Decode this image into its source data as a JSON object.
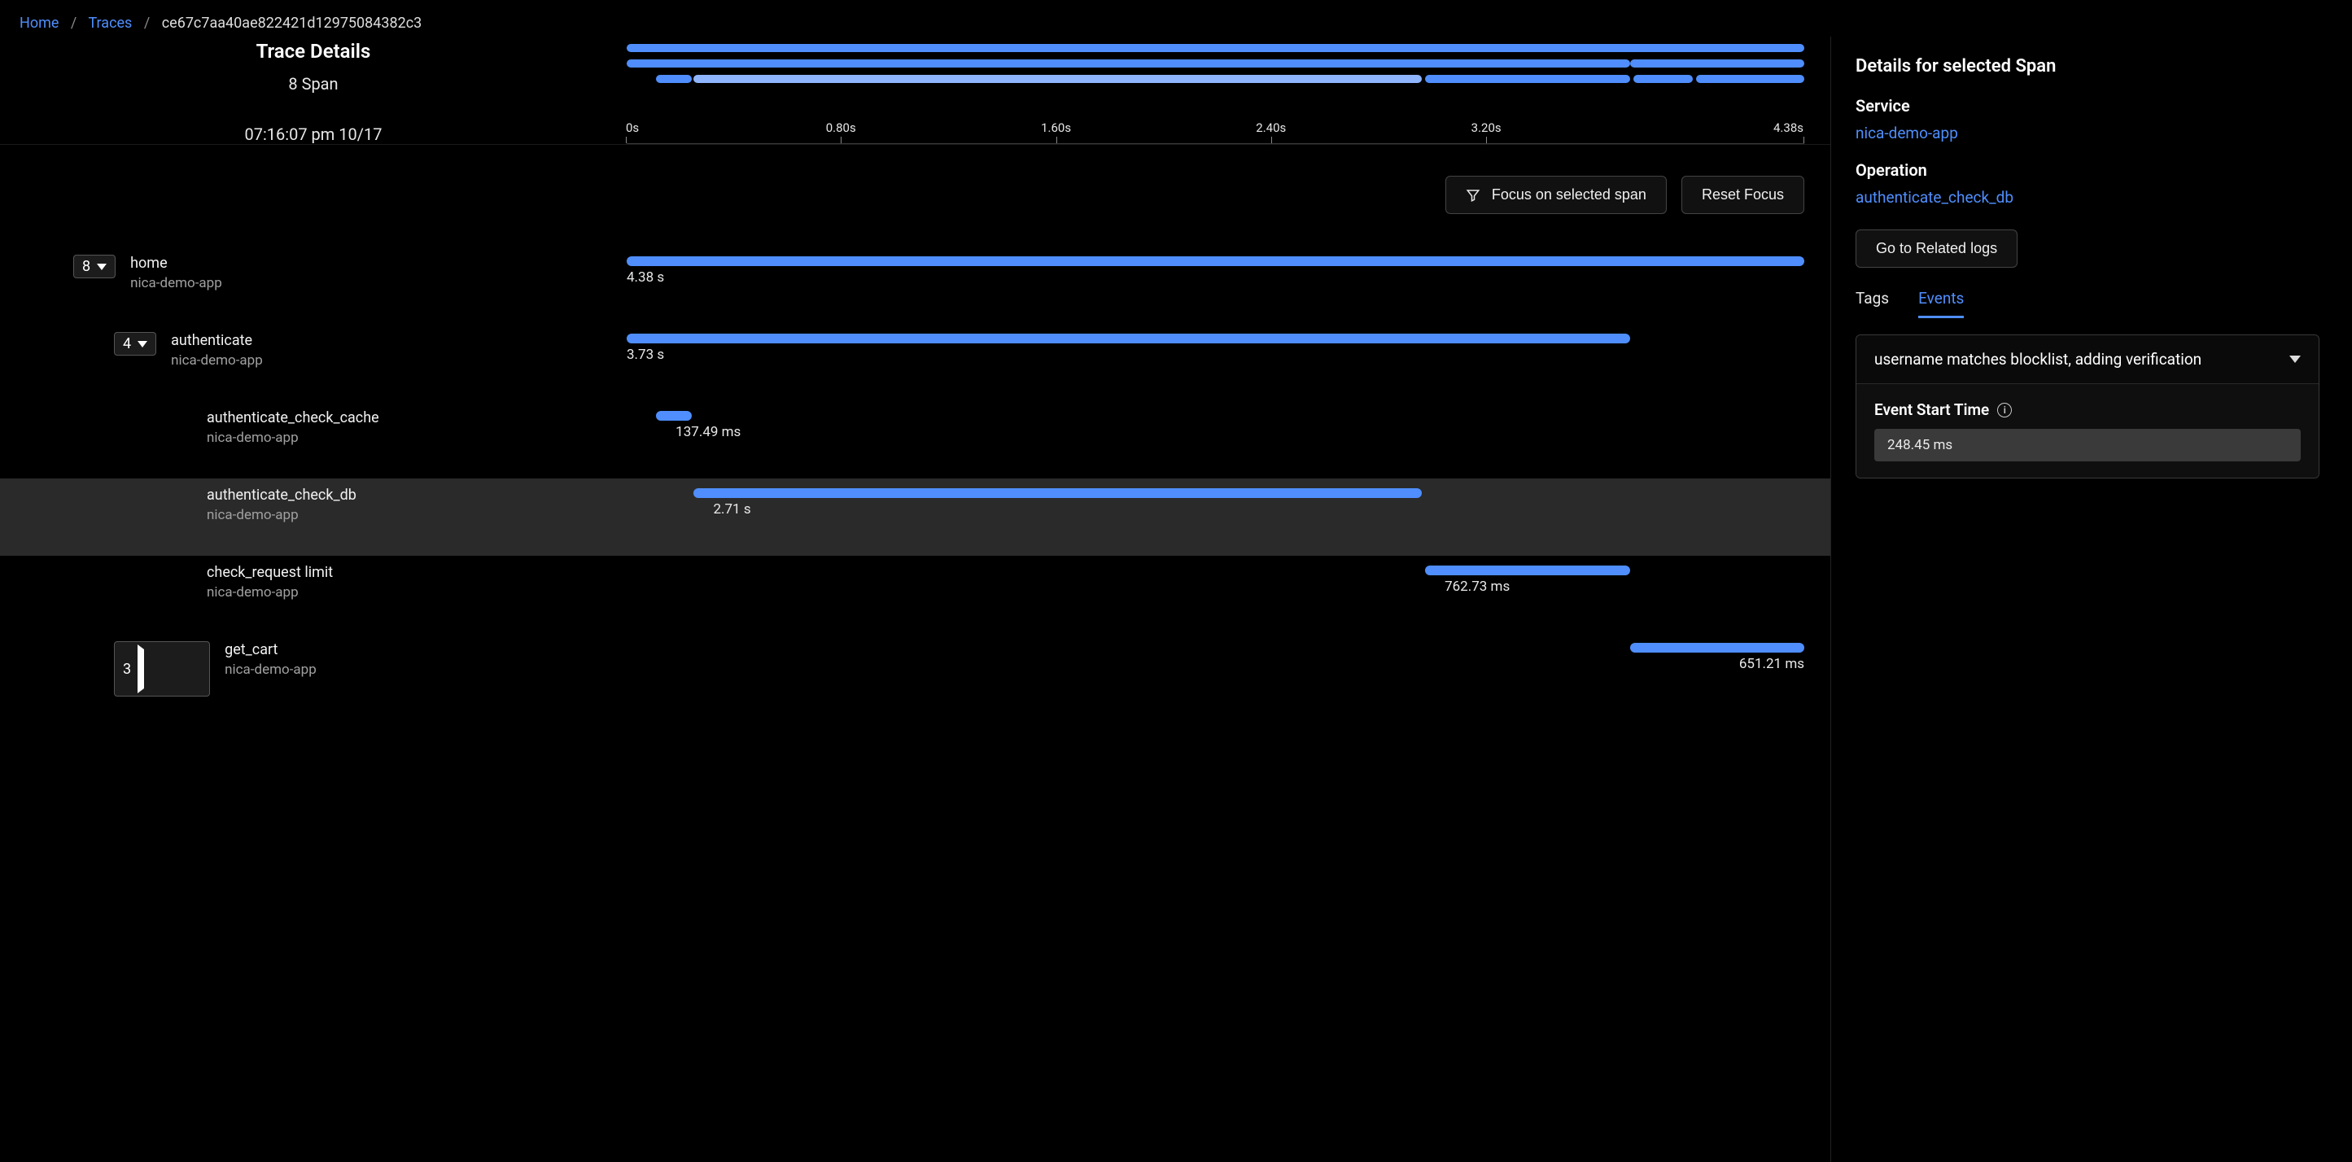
{
  "colors": {
    "bg": "#000000",
    "fg": "#ffffff",
    "link": "#4f8efc",
    "bar": "#4f8efc",
    "bar_light": "#8fb5ff",
    "row_selected": "#2a2a2a",
    "border": "#3a3a3a",
    "muted": "#a0a0a0",
    "chip_bg": "#1c1c1c"
  },
  "breadcrumb": {
    "home": "Home",
    "traces": "Traces",
    "trace_id": "ce67c7aa40ae822421d12975084382c3"
  },
  "header": {
    "title": "Trace Details",
    "span_count": "8 Span",
    "timestamp": "07:16:07 pm 10/17"
  },
  "timescale": {
    "xmin_s": 0,
    "xmax_s": 4.38,
    "ticks": [
      {
        "label": "0s",
        "pos": 0.0
      },
      {
        "label": "0.80s",
        "pos": 0.1826
      },
      {
        "label": "1.60s",
        "pos": 0.3653
      },
      {
        "label": "2.40s",
        "pos": 0.5479
      },
      {
        "label": "3.20s",
        "pos": 0.7306
      },
      {
        "label": "4.38s",
        "pos": 1.0
      }
    ]
  },
  "minimap": {
    "lanes": [
      [
        {
          "start": 0.0,
          "end": 1.0,
          "light": false
        }
      ],
      [
        {
          "start": 0.0,
          "end": 0.852,
          "light": false
        },
        {
          "start": 0.852,
          "end": 1.0,
          "light": false
        }
      ],
      [
        {
          "start": 0.025,
          "end": 0.055,
          "light": false
        },
        {
          "start": 0.057,
          "end": 0.675,
          "light": true
        },
        {
          "start": 0.678,
          "end": 0.852,
          "light": false
        },
        {
          "start": 0.855,
          "end": 0.905,
          "light": false
        },
        {
          "start": 0.908,
          "end": 1.0,
          "light": false
        }
      ]
    ]
  },
  "toolbar": {
    "focus": "Focus on selected span",
    "reset": "Reset Focus"
  },
  "spans": {
    "selected_index": 3,
    "rows": [
      {
        "indent": 0,
        "chip": "8",
        "caret": "down",
        "op": "home",
        "svc": "nica-demo-app",
        "start": 0.0,
        "end": 1.0,
        "dur": "4.38 s",
        "label_align": "left"
      },
      {
        "indent": 1,
        "chip": "4",
        "caret": "down",
        "op": "authenticate",
        "svc": "nica-demo-app",
        "start": 0.0,
        "end": 0.852,
        "dur": "3.73 s",
        "label_align": "left"
      },
      {
        "indent": 2,
        "chip": null,
        "caret": null,
        "op": "authenticate_check_cache",
        "svc": "nica-demo-app",
        "start": 0.025,
        "end": 0.055,
        "dur": "137.49 ms",
        "label_align": "left-offset"
      },
      {
        "indent": 2,
        "chip": null,
        "caret": null,
        "op": "authenticate_check_db",
        "svc": "nica-demo-app",
        "start": 0.057,
        "end": 0.675,
        "dur": "2.71 s",
        "label_align": "left-offset"
      },
      {
        "indent": 2,
        "chip": null,
        "caret": null,
        "op": "check_request limit",
        "svc": "nica-demo-app",
        "start": 0.678,
        "end": 0.852,
        "dur": "762.73 ms",
        "label_align": "left-offset"
      },
      {
        "indent": 1,
        "chip": "3",
        "caret": "right",
        "op": "get_cart",
        "svc": "nica-demo-app",
        "start": 0.852,
        "end": 1.0,
        "dur": "651.21 ms",
        "label_align": "right"
      }
    ]
  },
  "details": {
    "title": "Details for selected Span",
    "service_label": "Service",
    "service": "nica-demo-app",
    "operation_label": "Operation",
    "operation": "authenticate_check_db",
    "logs_btn": "Go to Related logs",
    "tabs": {
      "tags": "Tags",
      "events": "Events",
      "active": "events"
    },
    "event": {
      "title": "username matches blocklist, adding verification",
      "start_label": "Event Start Time",
      "start_value": "248.45 ms"
    }
  }
}
